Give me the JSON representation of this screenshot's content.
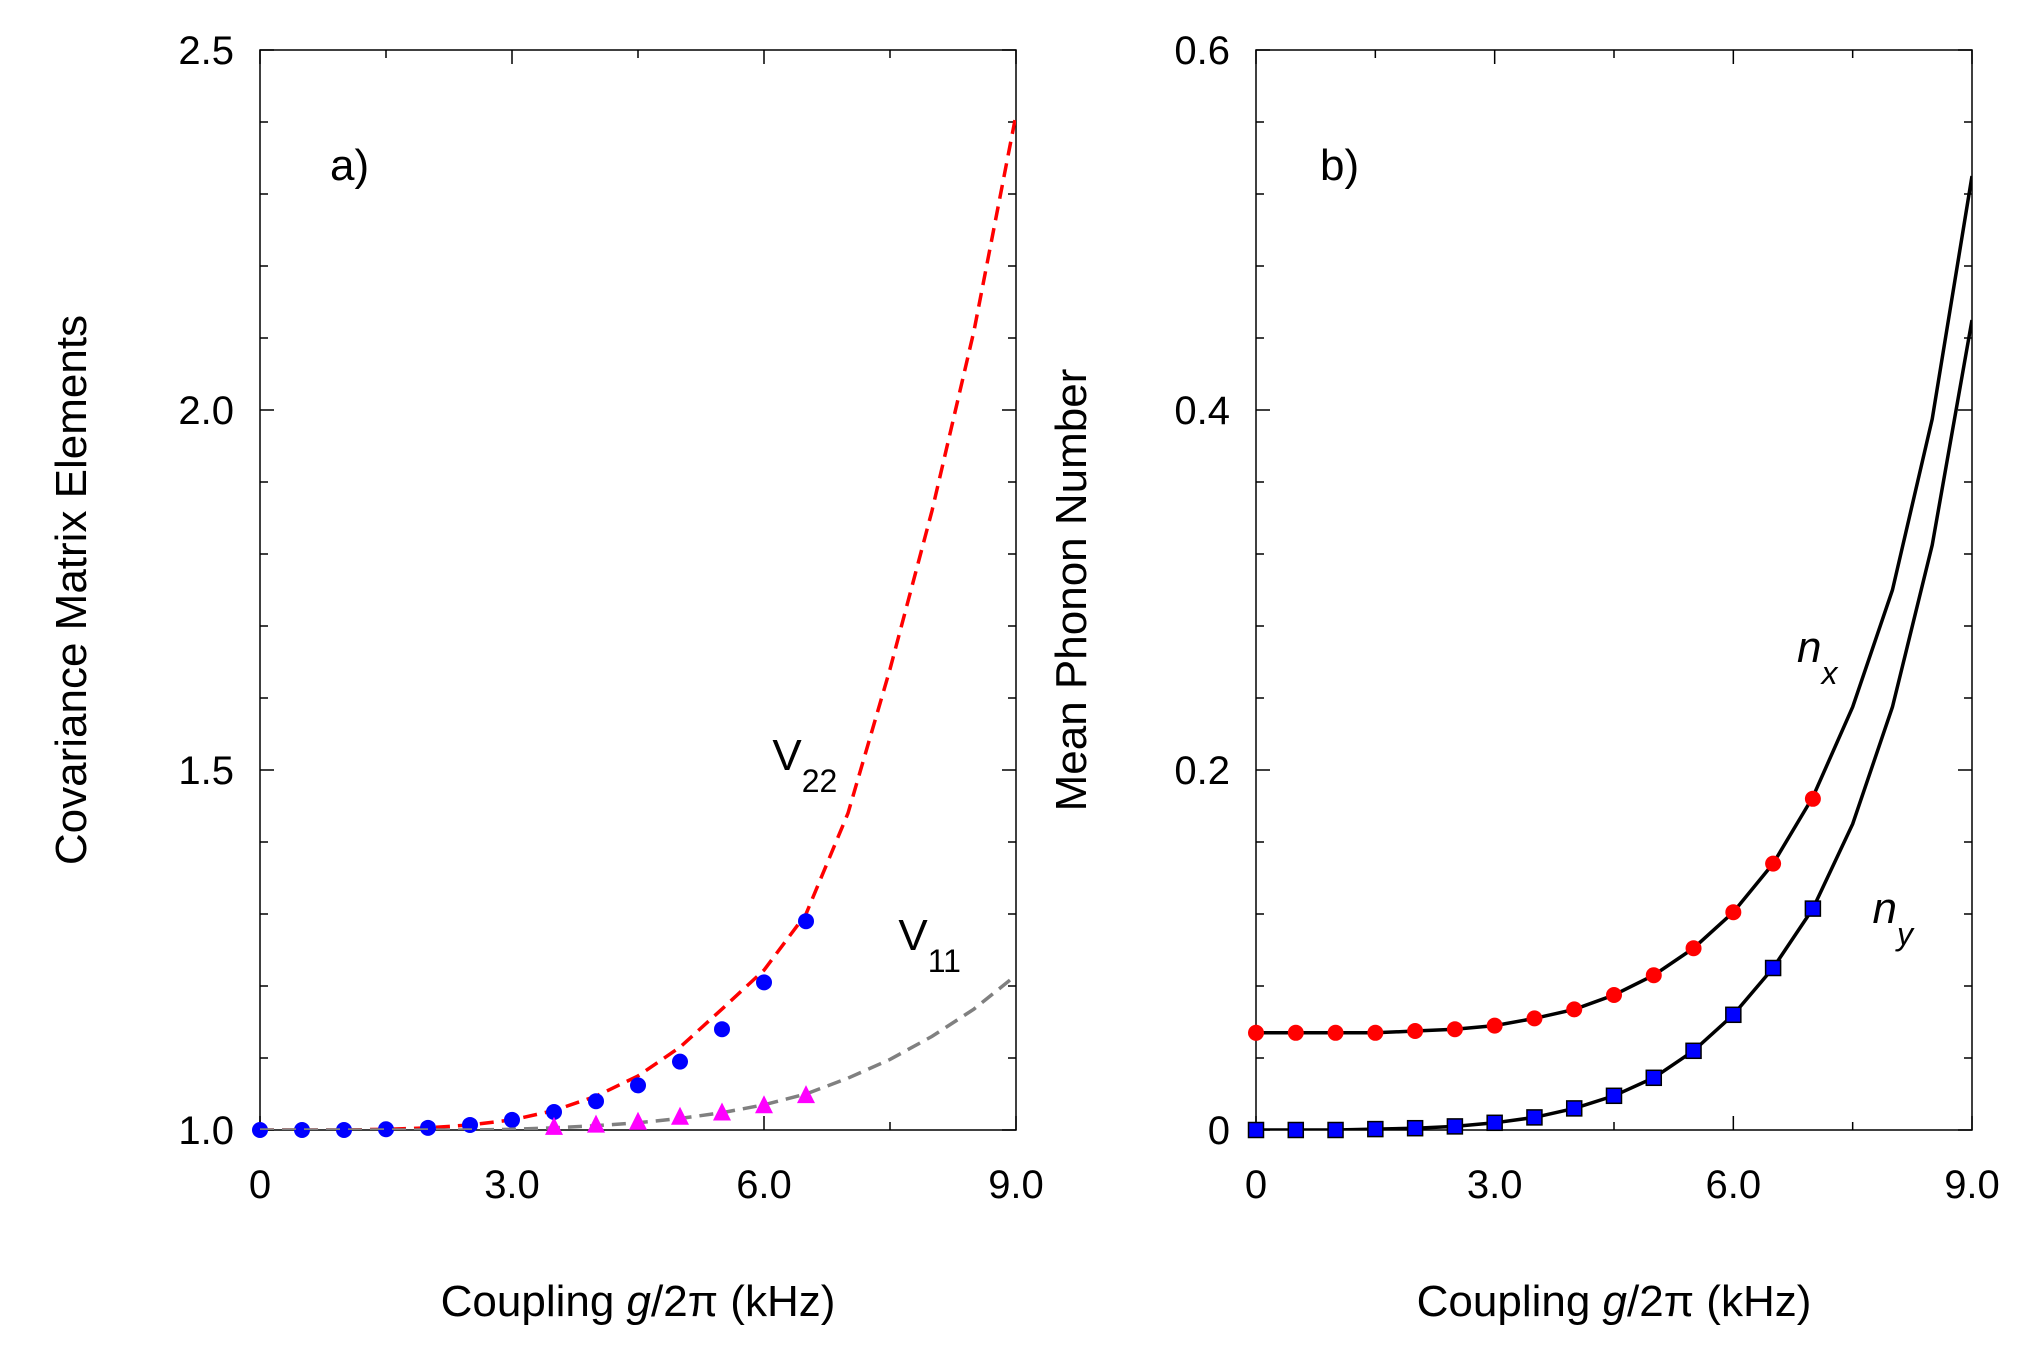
{
  "chart_data": [
    {
      "type": "scatter",
      "panel_label": "a)",
      "xlabel": {
        "pre": "Coupling ",
        "var": "g",
        "post": "/2π (kHz)"
      },
      "ylabel": "Covariance Matrix Elements",
      "xlim": [
        0,
        9
      ],
      "ylim": [
        1.0,
        2.5
      ],
      "xticks": [
        0,
        3,
        6,
        9
      ],
      "xtick_labels": [
        "0",
        "3.0",
        "6.0",
        "9.0"
      ],
      "yticks": [
        1.0,
        1.5,
        2.0,
        2.5
      ],
      "ytick_labels": [
        "1.0",
        "1.5",
        "2.0",
        "2.5"
      ],
      "grid": false,
      "series": [
        {
          "name": "V22",
          "label_main": "V",
          "label_sub": "22",
          "label_pos": [
            6.1,
            1.5
          ],
          "curve_color": "#ff0000",
          "curve_style": "dashed",
          "curve": {
            "x": [
              0,
              0.5,
              1.0,
              1.5,
              2.0,
              2.5,
              3.0,
              3.5,
              4.0,
              4.5,
              5.0,
              5.5,
              6.0,
              6.5,
              7.0,
              7.5,
              8.0,
              8.5,
              9.0
            ],
            "y": [
              1.0,
              1.0,
              1.0,
              1.001,
              1.003,
              1.007,
              1.014,
              1.027,
              1.047,
              1.075,
              1.115,
              1.168,
              1.222,
              1.3,
              1.44,
              1.64,
              1.86,
              2.11,
              2.41
            ]
          },
          "marker": "circle",
          "marker_color": "#0000ff",
          "points": {
            "x": [
              0,
              0.5,
              1.0,
              1.5,
              2.0,
              2.5,
              3.0,
              3.5,
              4.0,
              4.5,
              5.0,
              5.5,
              6.0,
              6.5
            ],
            "y": [
              1.0,
              1.0,
              1.0,
              1.001,
              1.003,
              1.007,
              1.014,
              1.025,
              1.04,
              1.062,
              1.095,
              1.14,
              1.205,
              1.29
            ]
          }
        },
        {
          "name": "V11",
          "label_main": "V",
          "label_sub": "11",
          "label_pos": [
            7.6,
            1.25
          ],
          "curve_color": "#808080",
          "curve_style": "dashed",
          "curve": {
            "x": [
              0,
              0.5,
              1.0,
              1.5,
              2.0,
              2.5,
              3.0,
              3.5,
              4.0,
              4.5,
              5.0,
              5.5,
              6.0,
              6.5,
              7.0,
              7.5,
              8.0,
              8.5,
              9.0
            ],
            "y": [
              1.0,
              1.0,
              1.0,
              1.0,
              1.0,
              1.0,
              1.001,
              1.003,
              1.006,
              1.01,
              1.016,
              1.024,
              1.035,
              1.05,
              1.072,
              1.098,
              1.13,
              1.168,
              1.215
            ]
          },
          "marker": "triangle",
          "marker_color": "#ff00ff",
          "points": {
            "x": [
              3.5,
              4.0,
              4.5,
              5.0,
              5.5,
              6.0,
              6.5
            ],
            "y": [
              1.003,
              1.006,
              1.01,
              1.017,
              1.023,
              1.033,
              1.047
            ]
          }
        }
      ]
    },
    {
      "type": "scatter",
      "panel_label": "b)",
      "xlabel": {
        "pre": "Coupling ",
        "var": "g",
        "post": "/2π (kHz)"
      },
      "ylabel": "Mean Phonon Number",
      "xlim": [
        0,
        9
      ],
      "ylim": [
        0,
        0.6
      ],
      "xticks": [
        0,
        3,
        6,
        9
      ],
      "xtick_labels": [
        "0",
        "3.0",
        "6.0",
        "9.0"
      ],
      "yticks": [
        0,
        0.2,
        0.4,
        0.6
      ],
      "ytick_labels": [
        "0",
        "0.2",
        "0.4",
        "0.6"
      ],
      "grid": false,
      "series": [
        {
          "name": "n_x",
          "label_main": "n",
          "label_sub": "x",
          "label_pos": [
            6.8,
            0.26
          ],
          "curve_color": "#000000",
          "curve_style": "solid",
          "curve": {
            "x": [
              0,
              0.5,
              1.0,
              1.5,
              2.0,
              2.5,
              3.0,
              3.5,
              4.0,
              4.5,
              5.0,
              5.5,
              6.0,
              6.5,
              7.0,
              7.5,
              8.0,
              8.5,
              9.0
            ],
            "y": [
              0.054,
              0.054,
              0.054,
              0.054,
              0.055,
              0.056,
              0.058,
              0.062,
              0.067,
              0.075,
              0.086,
              0.101,
              0.121,
              0.148,
              0.185,
              0.235,
              0.3,
              0.395,
              0.53
            ]
          },
          "marker": "circle",
          "marker_color": "#ff0000",
          "points": {
            "x": [
              0,
              0.5,
              1.0,
              1.5,
              2.0,
              2.5,
              3.0,
              3.5,
              4.0,
              4.5,
              5.0,
              5.5,
              6.0,
              6.5,
              7.0
            ],
            "y": [
              0.054,
              0.054,
              0.054,
              0.054,
              0.055,
              0.056,
              0.058,
              0.062,
              0.067,
              0.075,
              0.086,
              0.101,
              0.121,
              0.148,
              0.184
            ]
          }
        },
        {
          "name": "n_y",
          "label_main": "n",
          "label_sub": "y",
          "label_pos": [
            7.75,
            0.115
          ],
          "curve_color": "#000000",
          "curve_style": "solid",
          "curve": {
            "x": [
              0,
              0.5,
              1.0,
              1.5,
              2.0,
              2.5,
              3.0,
              3.5,
              4.0,
              4.5,
              5.0,
              5.5,
              6.0,
              6.5,
              7.0,
              7.5,
              8.0,
              8.5,
              9.0
            ],
            "y": [
              0.0,
              0.0,
              0.0,
              0.0005,
              0.001,
              0.002,
              0.004,
              0.007,
              0.012,
              0.019,
              0.029,
              0.044,
              0.064,
              0.09,
              0.123,
              0.17,
              0.235,
              0.325,
              0.45
            ]
          },
          "marker": "square",
          "marker_color": "#0000ff",
          "points": {
            "x": [
              0,
              0.5,
              1.0,
              1.5,
              2.0,
              2.5,
              3.0,
              3.5,
              4.0,
              4.5,
              5.0,
              5.5,
              6.0,
              6.5,
              7.0
            ],
            "y": [
              0.0,
              0.0,
              0.0,
              0.0005,
              0.001,
              0.002,
              0.004,
              0.007,
              0.012,
              0.019,
              0.029,
              0.044,
              0.064,
              0.09,
              0.123
            ]
          }
        }
      ]
    }
  ]
}
